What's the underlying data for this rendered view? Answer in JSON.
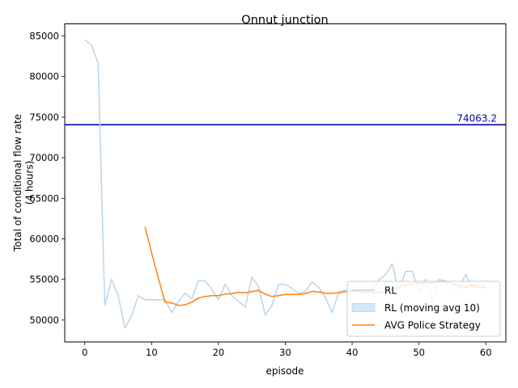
{
  "chart_data": {
    "type": "line",
    "title": "Onnut junction",
    "xlabel": "episode",
    "ylabel_lines": [
      "Total of conditional flow rate",
      "(4 hours)"
    ],
    "xlim": [
      -3,
      63
    ],
    "ylim": [
      47300,
      86500
    ],
    "x_ticks": [
      0,
      10,
      20,
      30,
      40,
      50,
      60
    ],
    "y_ticks": [
      50000,
      55000,
      60000,
      65000,
      70000,
      75000,
      80000,
      85000
    ],
    "grid": false,
    "legend_position": "lower-right",
    "reference_line": {
      "value": 74063.2,
      "label": "74063.2",
      "color": "#0000aa"
    },
    "series": [
      {
        "name": "RL",
        "color": "#b9d5ea",
        "x": [
          0,
          1,
          2,
          3,
          4,
          5,
          6,
          7,
          8,
          9,
          10,
          11,
          12,
          13,
          14,
          15,
          16,
          17,
          18,
          19,
          20,
          21,
          22,
          23,
          24,
          25,
          26,
          27,
          28,
          29,
          30,
          31,
          32,
          33,
          34,
          35,
          36,
          37,
          38,
          39,
          40,
          41,
          42,
          43,
          44,
          45,
          46,
          47,
          48,
          49,
          50,
          51,
          52,
          53,
          54,
          55,
          56,
          57,
          58,
          59,
          60
        ],
        "values": [
          84500,
          83900,
          81600,
          51800,
          55000,
          53000,
          49000,
          50500,
          53000,
          52500,
          52500,
          52500,
          52500,
          50900,
          52300,
          53300,
          52600,
          54900,
          54800,
          53800,
          52500,
          54400,
          53000,
          52300,
          51600,
          55300,
          54100,
          50600,
          51800,
          54400,
          54400,
          53900,
          53300,
          53500,
          54700,
          54000,
          52800,
          50900,
          53500,
          53700,
          53700,
          53600,
          53600,
          53600,
          54900,
          55600,
          56900,
          53500,
          56000,
          56000,
          53500,
          55000,
          52300,
          55000,
          54800,
          53300,
          54000,
          55600,
          54000,
          54400,
          54200
        ]
      },
      {
        "name": "RL (moving avg 10)",
        "color": "#c6dbef",
        "fill_opacity": 0.7,
        "legend_type": "area",
        "x": [],
        "values": []
      },
      {
        "name": "AVG Police Strategy",
        "color": "#ff7f0e",
        "x": [
          9,
          10,
          11,
          12,
          13,
          14,
          15,
          16,
          17,
          18,
          19,
          20,
          21,
          22,
          23,
          24,
          25,
          26,
          27,
          28,
          29,
          30,
          31,
          32,
          33,
          34,
          35,
          36,
          37,
          38,
          39,
          40,
          41,
          42,
          43,
          44,
          45,
          46,
          47,
          48,
          49,
          50,
          51,
          52,
          53,
          54,
          55,
          56,
          57,
          58,
          59,
          60
        ],
        "values": [
          61500,
          58300,
          55200,
          52200,
          52100,
          51800,
          51850,
          52200,
          52700,
          52900,
          53000,
          53000,
          53200,
          53250,
          53400,
          53350,
          53500,
          53650,
          53200,
          52900,
          53000,
          53150,
          53150,
          53150,
          53250,
          53550,
          53450,
          53300,
          53300,
          53350,
          53500,
          53500,
          53500,
          53400,
          53400,
          53400,
          53500,
          53800,
          54000,
          54300,
          54500,
          54600,
          54600,
          54600,
          54700,
          54700,
          54500,
          54200,
          54000,
          54300,
          54000,
          54000
        ]
      }
    ]
  }
}
